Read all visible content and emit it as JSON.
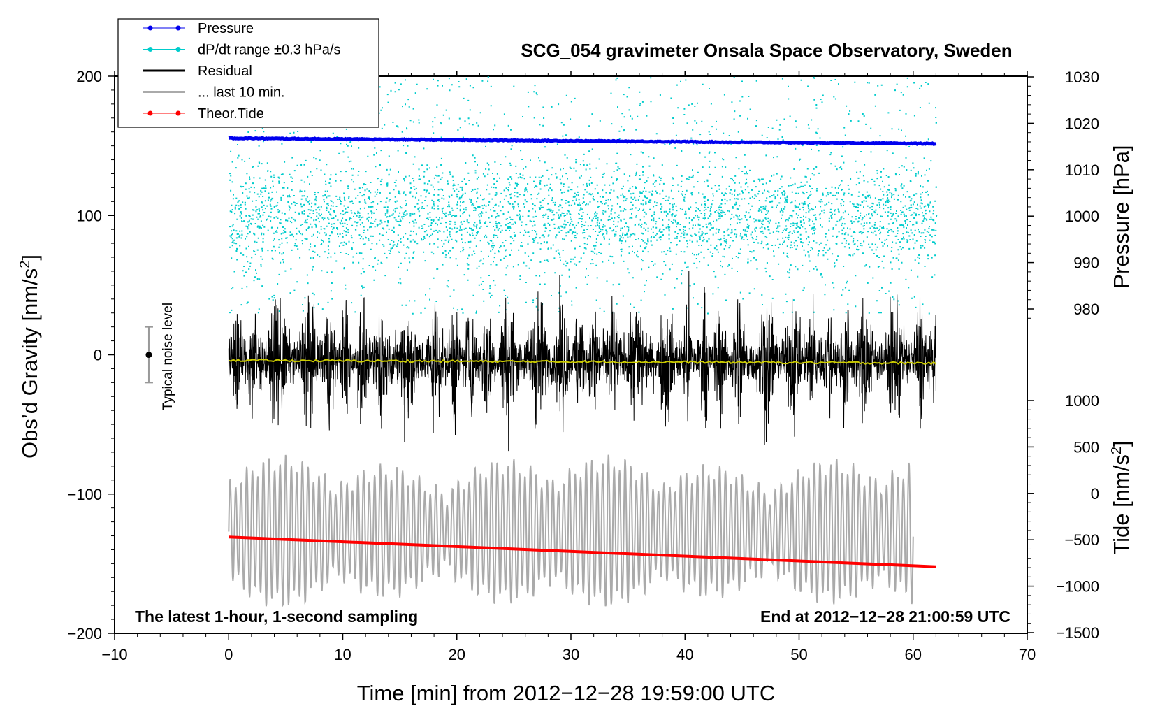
{
  "chart_data": {
    "type": "line",
    "title": "SCG_054 gravimeter Onsala Space Observatory, Sweden",
    "xlabel": "Time [min] from 2012−12−28 19:59:00 UTC",
    "ylabel_left_main": "Obs’d Gravity [nm/s",
    "ylabel_left_sup": "2",
    "ylabel_left_close": "]",
    "ylabel_right_pressure": "Pressure [hPa]",
    "ylabel_right_tide_main": "Tide [nm/s",
    "ylabel_right_tide_sup": "2",
    "ylabel_right_tide_close": "]",
    "xlim": [
      -10,
      70
    ],
    "ylim_gravity": [
      -200,
      200
    ],
    "pressure_axis_range": [
      978,
      1030
    ],
    "tide_axis_range": [
      -1500,
      1000
    ],
    "x_ticks": [
      "−10",
      "0",
      "10",
      "20",
      "30",
      "40",
      "50",
      "60",
      "70"
    ],
    "x_tick_values": [
      -10,
      0,
      10,
      20,
      30,
      40,
      50,
      60,
      70
    ],
    "y_ticks_left": [
      "200",
      "100",
      "0",
      "−100",
      "−200"
    ],
    "y_tick_values_left": [
      200,
      100,
      0,
      -100,
      -200
    ],
    "y_ticks_pressure": [
      "1030",
      "1020",
      "1010",
      "1000",
      "990",
      "980"
    ],
    "y_tick_values_pressure": [
      1030,
      1020,
      1010,
      1000,
      990,
      980
    ],
    "y_ticks_tide": [
      "1000",
      "500",
      "0",
      "−500",
      "−1000",
      "−1500"
    ],
    "y_tick_values_tide": [
      1000,
      500,
      0,
      -500,
      -1000,
      -1500
    ],
    "annotation_left": "The latest 1-hour, 1-second sampling",
    "annotation_right": "End at 2012−12−28 21:00:59 UTC",
    "noise_label": "Typical noise level",
    "noise_level": [
      -20,
      20
    ],
    "noise_level_x": -7,
    "legend": [
      {
        "label": "Pressure",
        "color": "#0000ee",
        "marker": true
      },
      {
        "label": "dP/dt range ±0.3 hPa/s",
        "color": "#00cccc",
        "marker": true
      },
      {
        "label": "Residual",
        "color": "#000000",
        "marker": false
      },
      {
        "label": "... last 10 min.",
        "color": "#aaaaaa",
        "marker": false
      },
      {
        "label": "Theor.Tide",
        "color": "#ff0000",
        "marker": true
      }
    ],
    "series": [
      {
        "name": "Pressure",
        "axis": "pressure_hPa",
        "color": "#0000ee",
        "x": [
          0,
          62
        ],
        "values": [
          1016.8,
          1015.6
        ]
      },
      {
        "name": "Theor.Tide",
        "axis": "tide_nm_s2",
        "color": "#ff0000",
        "x": [
          0,
          62
        ],
        "values": [
          -470,
          -790
        ]
      },
      {
        "name": "Residual mean",
        "axis": "gravity_nm_s2",
        "color": "#cccc00",
        "x": [
          0,
          62
        ],
        "values": [
          -4,
          -6
        ]
      },
      {
        "name": "Residual",
        "axis": "gravity_nm_s2",
        "color": "#000000",
        "x_range": [
          0,
          62
        ],
        "approx_range": [
          -80,
          75
        ]
      },
      {
        "name": "dP/dt range ±0.3 hPa/s",
        "axis": "gravity_nm_s2",
        "color": "#00cccc",
        "x_range": [
          0,
          62
        ],
        "approx_range": [
          30,
          200
        ]
      },
      {
        "name": "... last 10 min.",
        "axis": "gravity_nm_s2",
        "color": "#aaaaaa",
        "x_range": [
          0,
          60
        ],
        "approx_range": [
          -185,
          -70
        ]
      }
    ]
  }
}
